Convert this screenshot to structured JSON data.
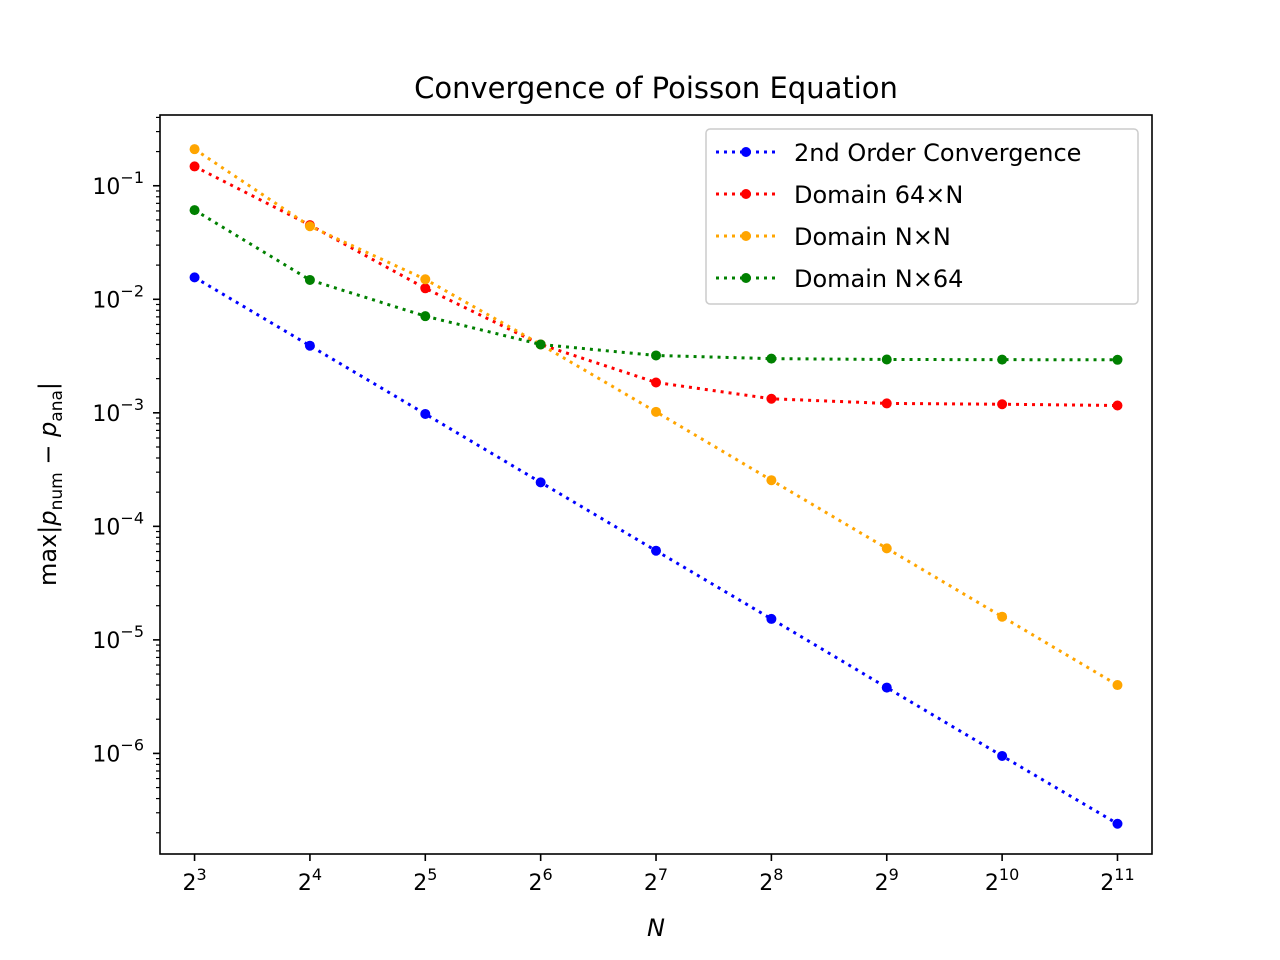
{
  "chart_data": {
    "type": "line",
    "title": "Convergence of Poisson Equation",
    "xlabel": "N",
    "ylabel": {
      "prefix": "max|",
      "p1": "p",
      "sub1": "num",
      "minus": " − ",
      "p2": "p",
      "sub2": "ana",
      "suffix": "|"
    },
    "xscale": "log2",
    "yscale": "log10",
    "x": [
      8,
      16,
      32,
      64,
      128,
      256,
      512,
      1024,
      2048
    ],
    "xticks": [
      {
        "base": "2",
        "exp": "3"
      },
      {
        "base": "2",
        "exp": "4"
      },
      {
        "base": "2",
        "exp": "5"
      },
      {
        "base": "2",
        "exp": "6"
      },
      {
        "base": "2",
        "exp": "7"
      },
      {
        "base": "2",
        "exp": "8"
      },
      {
        "base": "2",
        "exp": "9"
      },
      {
        "base": "2",
        "exp": "10"
      },
      {
        "base": "2",
        "exp": "11"
      }
    ],
    "yticks": [
      {
        "base": "10",
        "exp": "−6",
        "value": 1e-06
      },
      {
        "base": "10",
        "exp": "−5",
        "value": 1e-05
      },
      {
        "base": "10",
        "exp": "−4",
        "value": 0.0001
      },
      {
        "base": "10",
        "exp": "−3",
        "value": 0.001
      },
      {
        "base": "10",
        "exp": "−2",
        "value": 0.01
      },
      {
        "base": "10",
        "exp": "−1",
        "value": 0.1
      }
    ],
    "xlim": [
      6.5,
      2520
    ],
    "ylim": [
      1.3e-07,
      0.42
    ],
    "grid": false,
    "legend_position": "top-right",
    "series": [
      {
        "name": "2nd Order Convergence",
        "color": "#0000ff",
        "values": [
          0.0156,
          0.0039,
          0.000977,
          0.000244,
          6.1e-05,
          1.53e-05,
          3.8e-06,
          9.5e-07,
          2.4e-07
        ]
      },
      {
        "name": "Domain 64×N",
        "color": "#ff0000",
        "values": [
          0.148,
          0.045,
          0.0125,
          0.004,
          0.00185,
          0.00133,
          0.00121,
          0.00119,
          0.00116
        ]
      },
      {
        "name": "Domain N×N",
        "color": "#ffa500",
        "values": [
          0.21,
          0.044,
          0.015,
          0.004,
          0.00102,
          0.000255,
          6.4e-05,
          1.6e-05,
          4e-06
        ]
      },
      {
        "name": "Domain N×64",
        "color": "#008000",
        "values": [
          0.061,
          0.0148,
          0.0071,
          0.004,
          0.0032,
          0.003,
          0.00295,
          0.00294,
          0.00293
        ]
      }
    ]
  }
}
